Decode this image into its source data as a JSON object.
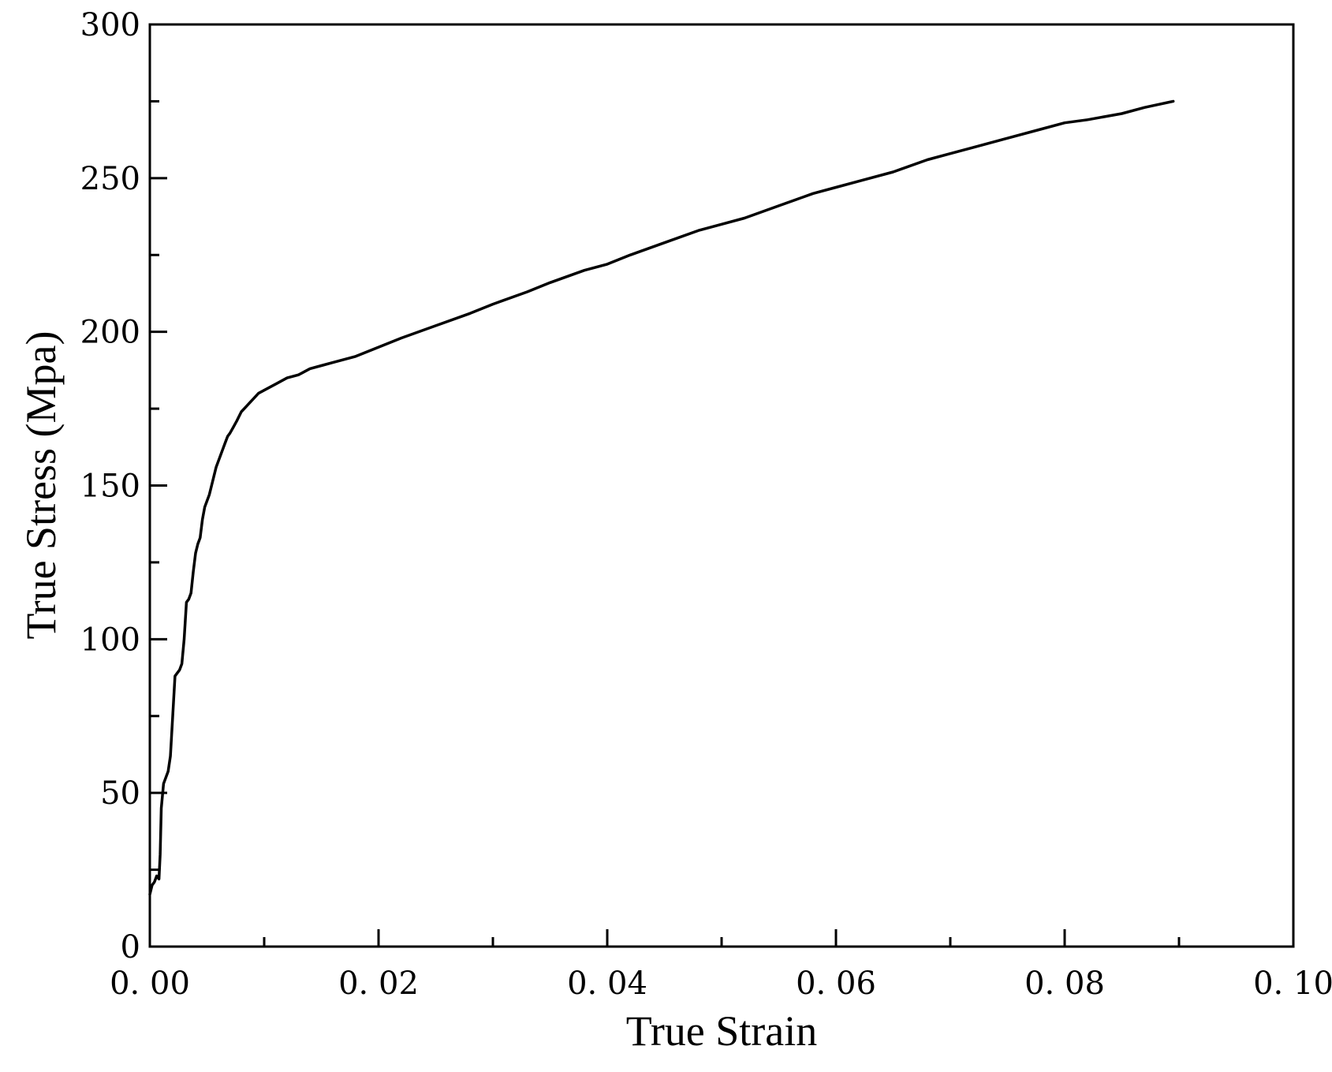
{
  "chart_data": {
    "type": "line",
    "title": "",
    "xlabel": "True Strain",
    "ylabel": "True Stress (Mpa)",
    "xlim": [
      0,
      0.1
    ],
    "ylim": [
      0,
      300
    ],
    "x_ticks": [
      0.0,
      0.02,
      0.04,
      0.06,
      0.08,
      0.1
    ],
    "x_tick_labels": [
      "0. 00",
      "0. 02",
      "0. 04",
      "0. 06",
      "0. 08",
      "0. 10"
    ],
    "y_ticks": [
      0,
      50,
      100,
      150,
      200,
      250,
      300
    ],
    "y_tick_labels": [
      "0",
      "50",
      "100",
      "150",
      "200",
      "250",
      "300"
    ],
    "x_minor_ticks": [
      0.01,
      0.03,
      0.05,
      0.07,
      0.09
    ],
    "y_minor_ticks": [
      25,
      75,
      125,
      175,
      225,
      275
    ],
    "grid": false,
    "legend": "none",
    "line_color": "#000000",
    "series": [
      {
        "x": [
          0.0,
          0.0002,
          0.0004,
          0.0006,
          0.0008,
          0.0009,
          0.001,
          0.0012,
          0.0014,
          0.0016,
          0.0018,
          0.002,
          0.0022,
          0.0024,
          0.0026,
          0.0028,
          0.003,
          0.0032,
          0.0034,
          0.0036,
          0.0038,
          0.004,
          0.0042,
          0.0044,
          0.0046,
          0.0048,
          0.005,
          0.0052,
          0.0054,
          0.0056,
          0.0058,
          0.006,
          0.0062,
          0.0064,
          0.0066,
          0.0068,
          0.007,
          0.0073,
          0.0076,
          0.008,
          0.0085,
          0.009,
          0.0095,
          0.01,
          0.011,
          0.012,
          0.013,
          0.014,
          0.015,
          0.016,
          0.018,
          0.02,
          0.022,
          0.025,
          0.028,
          0.03,
          0.033,
          0.035,
          0.038,
          0.04,
          0.042,
          0.045,
          0.048,
          0.05,
          0.052,
          0.055,
          0.058,
          0.06,
          0.062,
          0.065,
          0.068,
          0.07,
          0.072,
          0.075,
          0.078,
          0.08,
          0.082,
          0.085,
          0.087,
          0.0895
        ],
        "y": [
          17,
          20,
          21,
          23,
          22,
          30,
          45,
          53,
          55,
          57,
          62,
          75,
          88,
          89,
          90,
          92,
          100,
          112,
          113,
          115,
          122,
          128,
          131,
          133,
          139,
          143,
          145,
          147,
          150,
          153,
          156,
          158,
          160,
          162,
          164,
          166,
          167,
          169,
          171,
          174,
          176,
          178,
          180,
          181,
          183,
          185,
          186,
          188,
          189,
          190,
          192,
          195,
          198,
          202,
          206,
          209,
          213,
          216,
          220,
          222,
          225,
          229,
          233,
          235,
          237,
          241,
          245,
          247,
          249,
          252,
          256,
          258,
          260,
          263,
          266,
          268,
          269,
          271,
          273,
          275
        ]
      }
    ]
  }
}
